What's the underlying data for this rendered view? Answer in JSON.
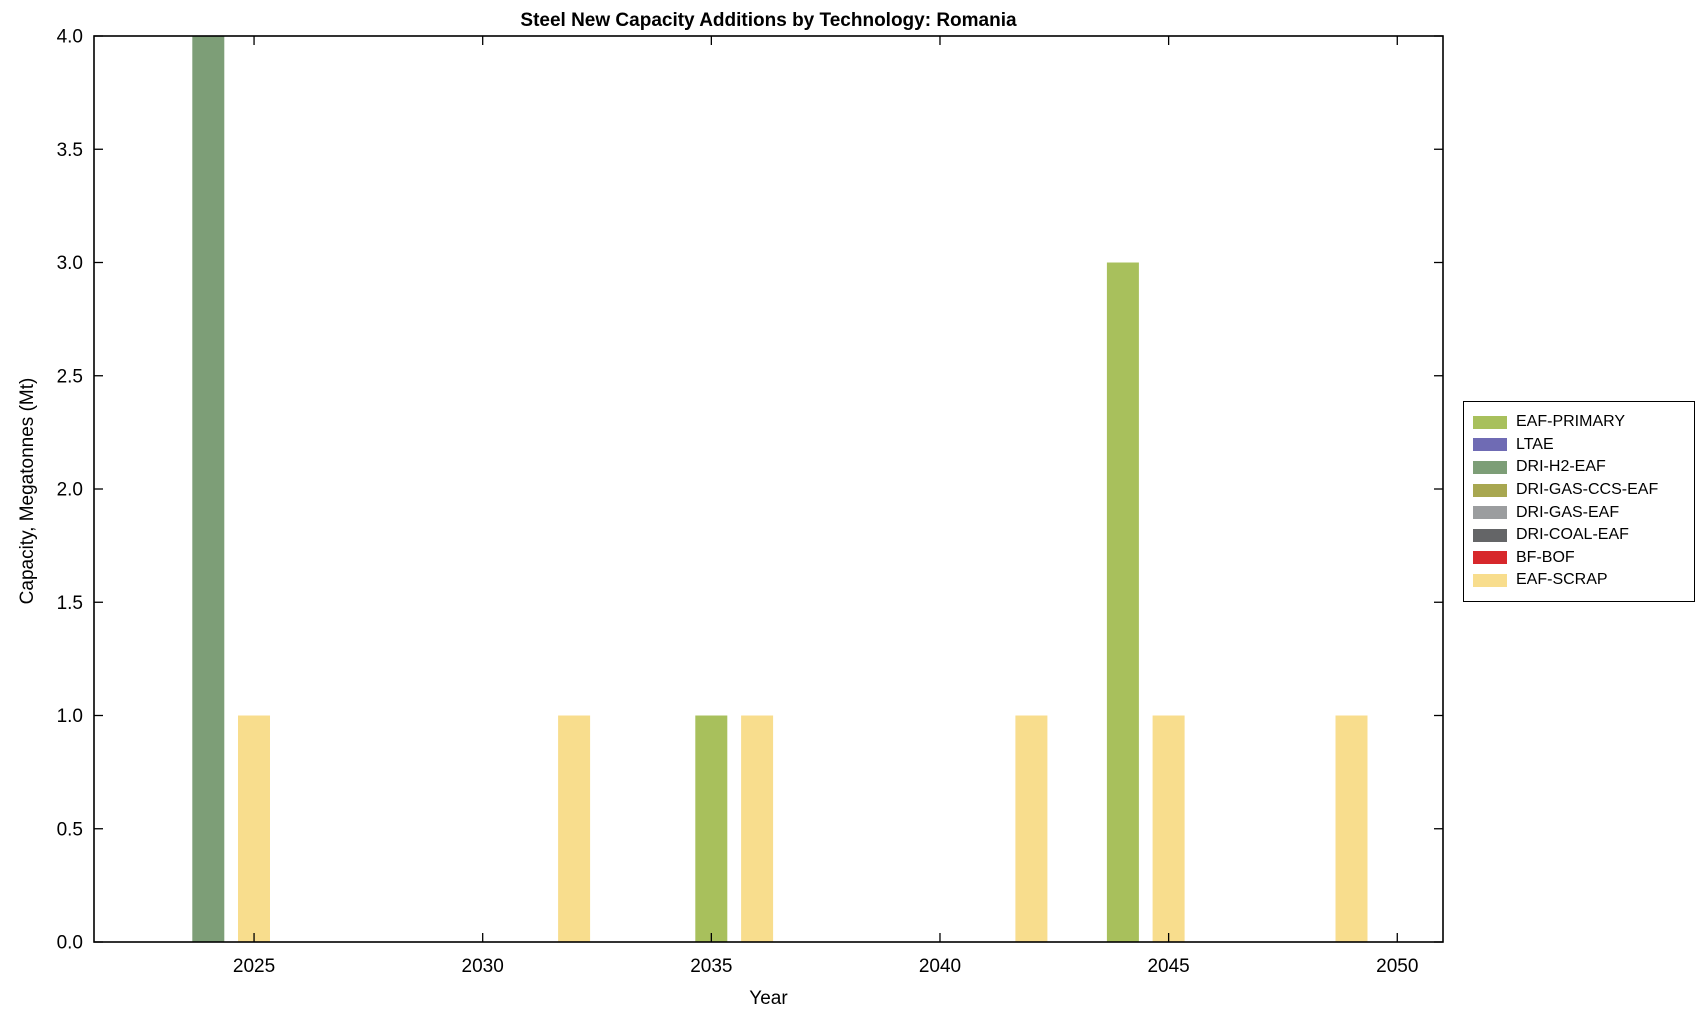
{
  "chart_data": {
    "type": "bar",
    "title": "Steel New Capacity Additions by Technology: Romania",
    "xlabel": "Year",
    "ylabel": "Capacity, Megatonnes (Mt)",
    "xlim": [
      2021.5,
      2051
    ],
    "ylim": [
      0,
      4
    ],
    "xticks": [
      2025,
      2030,
      2035,
      2040,
      2045,
      2050
    ],
    "yticks": [
      0,
      0.5,
      1,
      1.5,
      2,
      2.5,
      3,
      3.5,
      4
    ],
    "grid": false,
    "legend_position": "right-outside",
    "bar_width_years": 0.7,
    "axis_color": "#000000",
    "series": [
      {
        "name": "EAF-PRIMARY",
        "color": "#A8C05C",
        "points": [
          {
            "x": 2035,
            "y": 1
          },
          {
            "x": 2044,
            "y": 3
          }
        ]
      },
      {
        "name": "LTAE",
        "color": "#6F6BB4",
        "points": []
      },
      {
        "name": "DRI-H2-EAF",
        "color": "#7D9E77",
        "points": [
          {
            "x": 2024,
            "y": 4
          }
        ]
      },
      {
        "name": "DRI-GAS-CCS-EAF",
        "color": "#A8A750",
        "points": []
      },
      {
        "name": "DRI-GAS-EAF",
        "color": "#9B9D9F",
        "points": []
      },
      {
        "name": "DRI-COAL-EAF",
        "color": "#646567",
        "points": []
      },
      {
        "name": "BF-BOF",
        "color": "#D7282B",
        "points": []
      },
      {
        "name": "EAF-SCRAP",
        "color": "#F8DD8D",
        "points": [
          {
            "x": 2025,
            "y": 1
          },
          {
            "x": 2032,
            "y": 1
          },
          {
            "x": 2036,
            "y": 1
          },
          {
            "x": 2042,
            "y": 1
          },
          {
            "x": 2045,
            "y": 1
          },
          {
            "x": 2049,
            "y": 1
          }
        ]
      }
    ]
  }
}
